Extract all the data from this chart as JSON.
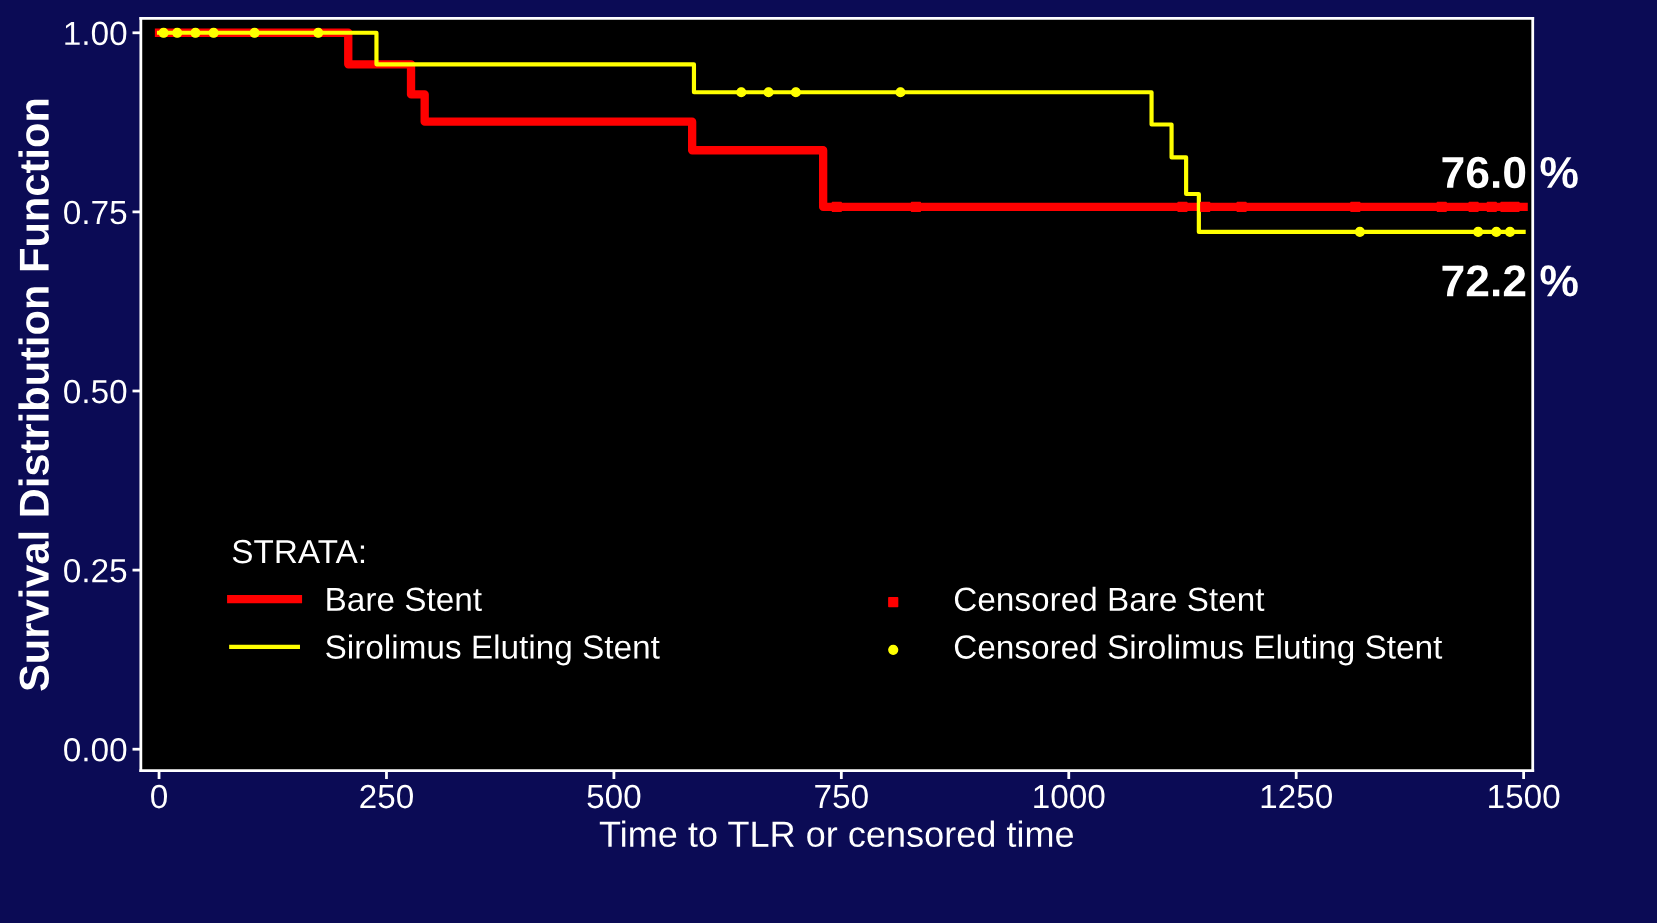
{
  "chart_data": {
    "type": "step",
    "xlabel": "Time to TLR or censored time",
    "ylabel": "Survival Distribution Function",
    "legend_title": "STRATA:",
    "xlim": [
      -20,
      1510
    ],
    "ylim": [
      -0.03,
      1.02
    ],
    "xticks": [
      0,
      250,
      500,
      750,
      1000,
      1250,
      1500
    ],
    "yticks": [
      {
        "value": 0,
        "label": "0.00"
      },
      {
        "value": 0.25,
        "label": "0.25"
      },
      {
        "value": 0.5,
        "label": "0.50"
      },
      {
        "value": 0.75,
        "label": "0.75"
      },
      {
        "value": 1,
        "label": "1.00"
      }
    ],
    "grid": false,
    "legend": "bottom",
    "series": [
      {
        "name": "Bare Stent",
        "color": "#ff0000",
        "x": [
          0,
          208,
          277,
          292,
          586,
          730,
          1500
        ],
        "values": [
          1.0,
          0.956,
          0.914,
          0.876,
          0.836,
          0.757,
          0.757
        ]
      },
      {
        "name": "Sirolimus Eluting Stent",
        "color": "#ffff00",
        "x": [
          0,
          239,
          588,
          1091,
          1113,
          1129,
          1143,
          1500
        ],
        "values": [
          1.0,
          0.956,
          0.917,
          0.872,
          0.826,
          0.775,
          0.722,
          0.722
        ]
      },
      {
        "name": "Censored Bare Stent",
        "type": "scatter",
        "marker": "square",
        "color": "#ff0000",
        "x": [
          745,
          832,
          1125,
          1150,
          1190,
          1315,
          1410,
          1445,
          1465,
          1480,
          1490
        ],
        "values": [
          0.757,
          0.757,
          0.757,
          0.757,
          0.757,
          0.757,
          0.757,
          0.757,
          0.757,
          0.757,
          0.757
        ]
      },
      {
        "name": "Censored Sirolimus Eluting Stent",
        "type": "scatter",
        "marker": "circle",
        "color": "#ffff00",
        "x": [
          5,
          20,
          40,
          60,
          105,
          175,
          640,
          670,
          700,
          815,
          1320,
          1450,
          1470,
          1485
        ],
        "values": [
          1.0,
          1.0,
          1.0,
          1.0,
          1.0,
          1.0,
          0.917,
          0.917,
          0.917,
          0.917,
          0.722,
          0.722,
          0.722,
          0.722
        ]
      }
    ],
    "annotations": [
      {
        "text": "76.0 %",
        "x": 1500,
        "y": 0.757
      },
      {
        "text": "72.2 %",
        "x": 1500,
        "y": 0.722
      }
    ]
  }
}
